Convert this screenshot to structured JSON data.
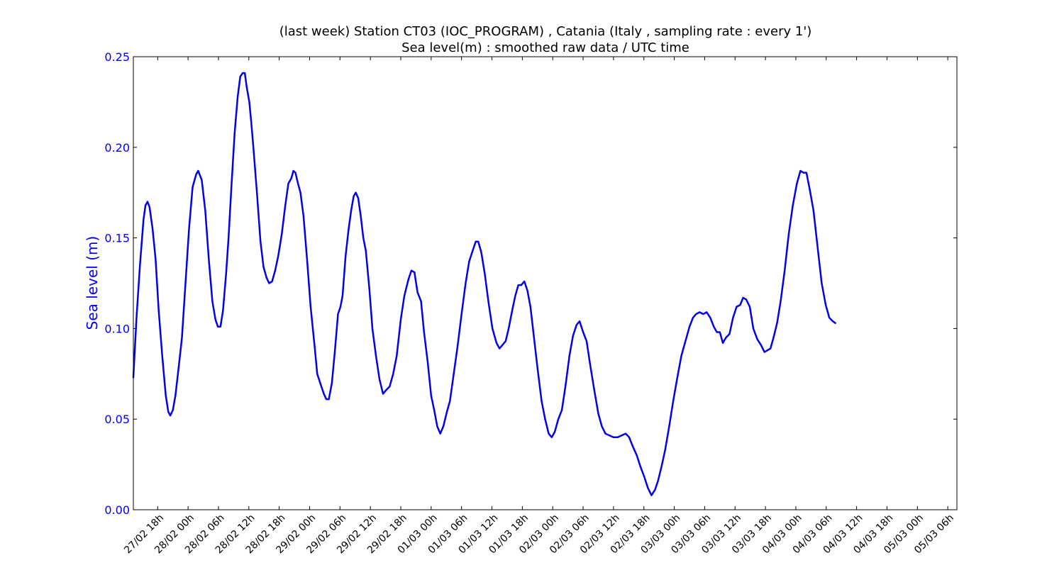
{
  "chart_data": {
    "type": "line",
    "title": "(last week) Station CT03 (IOC_PROGRAM) , Catania (Italy , sampling rate : every 1')",
    "subtitle": "Sea level(m) : smoothed raw data / UTC time",
    "xlabel": "",
    "ylabel": "Sea level (m)",
    "ylim": [
      0,
      0.25
    ],
    "xlim_hours": [
      -4.8,
      157.8
    ],
    "y_ticks": [
      "0.00",
      "0.05",
      "0.10",
      "0.15",
      "0.20",
      "0.25"
    ],
    "x_tick_labels": [
      "27/02 18h",
      "28/02 00h",
      "28/02 06h",
      "28/02 12h",
      "28/02 18h",
      "29/02 00h",
      "29/02 06h",
      "29/02 12h",
      "29/02 18h",
      "01/03 00h",
      "01/03 06h",
      "01/03 12h",
      "01/03 18h",
      "02/03 00h",
      "02/03 06h",
      "02/03 12h",
      "02/03 18h",
      "03/03 00h",
      "03/03 06h",
      "03/03 12h",
      "03/03 18h",
      "04/03 00h",
      "04/03 06h",
      "04/03 12h",
      "04/03 18h",
      "05/03 00h",
      "05/03 06h"
    ],
    "x_tick_hours": [
      0,
      6,
      12,
      18,
      24,
      30,
      36,
      42,
      48,
      54,
      60,
      66,
      72,
      78,
      84,
      90,
      96,
      102,
      108,
      114,
      120,
      126,
      132,
      138,
      144,
      150,
      156
    ],
    "grid": false,
    "colors": {
      "series": "#0000ee",
      "axis_text": "#0000ff",
      "axes": "#000000"
    },
    "series": [
      {
        "points": [
          [
            -4.8,
            0.073
          ],
          [
            -4.2,
            0.105
          ],
          [
            -3.5,
            0.135
          ],
          [
            -2.8,
            0.16
          ],
          [
            -2.4,
            0.168
          ],
          [
            -2.0,
            0.17
          ],
          [
            -1.6,
            0.167
          ],
          [
            -1.0,
            0.155
          ],
          [
            -0.4,
            0.138
          ],
          [
            0.2,
            0.11
          ],
          [
            0.9,
            0.085
          ],
          [
            1.6,
            0.063
          ],
          [
            2.1,
            0.054
          ],
          [
            2.5,
            0.052
          ],
          [
            3.0,
            0.055
          ],
          [
            3.5,
            0.063
          ],
          [
            4.2,
            0.08
          ],
          [
            4.8,
            0.095
          ],
          [
            5.5,
            0.125
          ],
          [
            6.2,
            0.155
          ],
          [
            6.9,
            0.178
          ],
          [
            7.6,
            0.185
          ],
          [
            8.0,
            0.187
          ],
          [
            8.7,
            0.182
          ],
          [
            9.4,
            0.165
          ],
          [
            10.1,
            0.138
          ],
          [
            10.8,
            0.115
          ],
          [
            11.4,
            0.105
          ],
          [
            11.9,
            0.101
          ],
          [
            12.4,
            0.101
          ],
          [
            12.9,
            0.11
          ],
          [
            13.5,
            0.13
          ],
          [
            14.0,
            0.15
          ],
          [
            14.6,
            0.18
          ],
          [
            15.2,
            0.208
          ],
          [
            15.8,
            0.228
          ],
          [
            16.3,
            0.239
          ],
          [
            16.8,
            0.241
          ],
          [
            17.2,
            0.241
          ],
          [
            17.6,
            0.233
          ],
          [
            18.1,
            0.225
          ],
          [
            18.5,
            0.213
          ],
          [
            18.9,
            0.2
          ],
          [
            19.6,
            0.175
          ],
          [
            20.3,
            0.148
          ],
          [
            20.9,
            0.134
          ],
          [
            21.5,
            0.128
          ],
          [
            22.0,
            0.125
          ],
          [
            22.6,
            0.126
          ],
          [
            23.2,
            0.132
          ],
          [
            23.8,
            0.14
          ],
          [
            24.5,
            0.152
          ],
          [
            25.2,
            0.168
          ],
          [
            25.8,
            0.18
          ],
          [
            26.4,
            0.183
          ],
          [
            26.8,
            0.187
          ],
          [
            27.2,
            0.186
          ],
          [
            27.7,
            0.18
          ],
          [
            28.2,
            0.175
          ],
          [
            28.8,
            0.162
          ],
          [
            29.5,
            0.138
          ],
          [
            30.2,
            0.112
          ],
          [
            31.0,
            0.09
          ],
          [
            31.5,
            0.075
          ],
          [
            32.2,
            0.069
          ],
          [
            32.8,
            0.064
          ],
          [
            33.3,
            0.061
          ],
          [
            33.8,
            0.061
          ],
          [
            34.4,
            0.07
          ],
          [
            35.0,
            0.088
          ],
          [
            35.6,
            0.108
          ],
          [
            36.1,
            0.112
          ],
          [
            36.5,
            0.118
          ],
          [
            37.1,
            0.14
          ],
          [
            37.7,
            0.155
          ],
          [
            38.2,
            0.165
          ],
          [
            38.7,
            0.173
          ],
          [
            39.1,
            0.175
          ],
          [
            39.6,
            0.172
          ],
          [
            40.1,
            0.162
          ],
          [
            40.6,
            0.15
          ],
          [
            41.1,
            0.143
          ],
          [
            41.8,
            0.122
          ],
          [
            42.4,
            0.1
          ],
          [
            43.1,
            0.085
          ],
          [
            43.8,
            0.072
          ],
          [
            44.5,
            0.064
          ],
          [
            45.1,
            0.066
          ],
          [
            45.8,
            0.068
          ],
          [
            46.5,
            0.075
          ],
          [
            47.2,
            0.085
          ],
          [
            48.0,
            0.105
          ],
          [
            48.7,
            0.118
          ],
          [
            49.5,
            0.127
          ],
          [
            50.1,
            0.132
          ],
          [
            50.7,
            0.131
          ],
          [
            51.3,
            0.12
          ],
          [
            52.0,
            0.115
          ],
          [
            52.6,
            0.098
          ],
          [
            53.3,
            0.082
          ],
          [
            54.0,
            0.063
          ],
          [
            54.6,
            0.055
          ],
          [
            55.2,
            0.046
          ],
          [
            55.8,
            0.042
          ],
          [
            56.4,
            0.046
          ],
          [
            57.1,
            0.054
          ],
          [
            57.7,
            0.06
          ],
          [
            58.4,
            0.074
          ],
          [
            59.2,
            0.09
          ],
          [
            60.0,
            0.108
          ],
          [
            60.8,
            0.125
          ],
          [
            61.5,
            0.137
          ],
          [
            62.2,
            0.143
          ],
          [
            62.8,
            0.148
          ],
          [
            63.3,
            0.148
          ],
          [
            63.9,
            0.142
          ],
          [
            64.6,
            0.13
          ],
          [
            65.3,
            0.115
          ],
          [
            66.1,
            0.1
          ],
          [
            66.9,
            0.092
          ],
          [
            67.5,
            0.089
          ],
          [
            68.1,
            0.091
          ],
          [
            68.7,
            0.093
          ],
          [
            69.3,
            0.1
          ],
          [
            70.0,
            0.11
          ],
          [
            70.6,
            0.118
          ],
          [
            71.2,
            0.124
          ],
          [
            71.8,
            0.124
          ],
          [
            72.4,
            0.126
          ],
          [
            73.0,
            0.121
          ],
          [
            73.6,
            0.112
          ],
          [
            74.3,
            0.095
          ],
          [
            75.0,
            0.078
          ],
          [
            75.8,
            0.06
          ],
          [
            76.5,
            0.05
          ],
          [
            77.2,
            0.042
          ],
          [
            77.8,
            0.04
          ],
          [
            78.4,
            0.043
          ],
          [
            79.1,
            0.05
          ],
          [
            79.8,
            0.055
          ],
          [
            80.5,
            0.068
          ],
          [
            81.3,
            0.085
          ],
          [
            82.0,
            0.096
          ],
          [
            82.7,
            0.102
          ],
          [
            83.3,
            0.104
          ],
          [
            84.0,
            0.098
          ],
          [
            84.7,
            0.093
          ],
          [
            85.4,
            0.08
          ],
          [
            86.2,
            0.066
          ],
          [
            87.0,
            0.053
          ],
          [
            87.7,
            0.046
          ],
          [
            88.4,
            0.042
          ],
          [
            89.2,
            0.041
          ],
          [
            90.0,
            0.04
          ],
          [
            90.8,
            0.04
          ],
          [
            91.6,
            0.041
          ],
          [
            92.4,
            0.042
          ],
          [
            93.1,
            0.04
          ],
          [
            93.8,
            0.035
          ],
          [
            94.6,
            0.03
          ],
          [
            95.3,
            0.024
          ],
          [
            96.1,
            0.018
          ],
          [
            96.8,
            0.012
          ],
          [
            97.5,
            0.008
          ],
          [
            98.2,
            0.011
          ],
          [
            98.8,
            0.016
          ],
          [
            99.5,
            0.024
          ],
          [
            100.2,
            0.033
          ],
          [
            101.0,
            0.046
          ],
          [
            101.8,
            0.06
          ],
          [
            102.6,
            0.073
          ],
          [
            103.4,
            0.085
          ],
          [
            104.2,
            0.093
          ],
          [
            105.0,
            0.101
          ],
          [
            105.7,
            0.106
          ],
          [
            106.3,
            0.108
          ],
          [
            107.0,
            0.109
          ],
          [
            107.7,
            0.108
          ],
          [
            108.4,
            0.109
          ],
          [
            109.1,
            0.106
          ],
          [
            109.8,
            0.101
          ],
          [
            110.4,
            0.098
          ],
          [
            111.0,
            0.098
          ],
          [
            111.6,
            0.092
          ],
          [
            112.2,
            0.095
          ],
          [
            112.9,
            0.097
          ],
          [
            113.6,
            0.106
          ],
          [
            114.3,
            0.112
          ],
          [
            115.0,
            0.113
          ],
          [
            115.6,
            0.117
          ],
          [
            116.2,
            0.116
          ],
          [
            116.9,
            0.112
          ],
          [
            117.6,
            0.1
          ],
          [
            118.4,
            0.094
          ],
          [
            119.1,
            0.091
          ],
          [
            119.8,
            0.087
          ],
          [
            120.4,
            0.088
          ],
          [
            121.0,
            0.089
          ],
          [
            121.6,
            0.095
          ],
          [
            122.3,
            0.103
          ],
          [
            123.0,
            0.115
          ],
          [
            123.8,
            0.132
          ],
          [
            124.6,
            0.152
          ],
          [
            125.4,
            0.168
          ],
          [
            126.2,
            0.18
          ],
          [
            126.9,
            0.187
          ],
          [
            127.5,
            0.186
          ],
          [
            128.1,
            0.186
          ],
          [
            128.8,
            0.176
          ],
          [
            129.5,
            0.165
          ],
          [
            130.3,
            0.145
          ],
          [
            131.1,
            0.125
          ],
          [
            131.9,
            0.113
          ],
          [
            132.6,
            0.106
          ],
          [
            133.3,
            0.104
          ],
          [
            133.8,
            0.103
          ]
        ]
      }
    ]
  }
}
